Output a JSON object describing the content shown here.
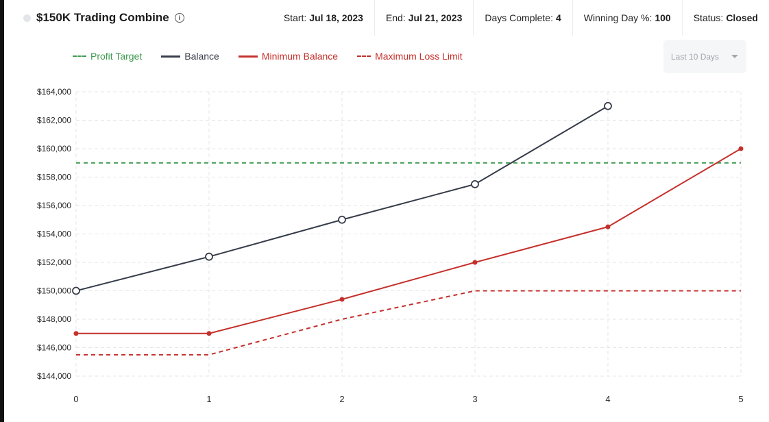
{
  "header": {
    "title": "$150K Trading Combine",
    "start_label": "Start:",
    "start_value": "Jul 18, 2023",
    "end_label": "End:",
    "end_value": "Jul 21, 2023",
    "days_label": "Days Complete:",
    "days_value": "4",
    "winning_label": "Winning Day %:",
    "winning_value": "100",
    "status_label": "Status:",
    "status_value": "Closed"
  },
  "range_selector": {
    "selected": "Last 10 Days"
  },
  "colors": {
    "profit_target": "#3f9a4f",
    "balance": "#363c4a",
    "minimum_balance": "#c4302b",
    "max_loss": "#c4302b",
    "grid": "#e2e4e8"
  },
  "chart_data": {
    "type": "line",
    "x": [
      0,
      1,
      2,
      3,
      4,
      5
    ],
    "xlim": [
      0,
      5
    ],
    "ylim": [
      144000,
      164000
    ],
    "y_ticks": [
      144000,
      146000,
      148000,
      150000,
      152000,
      154000,
      156000,
      158000,
      160000,
      162000,
      164000
    ],
    "y_tick_labels": [
      "$144,000",
      "$146,000",
      "$148,000",
      "$150,000",
      "$152,000",
      "$154,000",
      "$156,000",
      "$158,000",
      "$160,000",
      "$162,000",
      "$164,000"
    ],
    "x_tick_labels": [
      "0",
      "1",
      "2",
      "3",
      "4",
      "5"
    ],
    "grid": true,
    "legend_position": "top-left",
    "series": [
      {
        "name": "Profit Target",
        "style": "dashed",
        "x": [
          0,
          5
        ],
        "values": [
          159000,
          159000
        ]
      },
      {
        "name": "Balance",
        "style": "solid",
        "markers": "hollow-circle",
        "x": [
          0,
          1,
          2,
          3,
          4
        ],
        "values": [
          150000,
          152400,
          155000,
          157500,
          163000
        ]
      },
      {
        "name": "Minimum Balance",
        "style": "solid",
        "markers": "dot",
        "x": [
          0,
          1,
          2,
          3,
          4,
          5
        ],
        "values": [
          147000,
          147000,
          149400,
          152000,
          154500,
          160000
        ]
      },
      {
        "name": "Maximum Loss Limit",
        "style": "dashed",
        "x": [
          0,
          1,
          2,
          3,
          4,
          5
        ],
        "values": [
          145500,
          145500,
          148000,
          150000,
          150000,
          150000
        ]
      }
    ]
  }
}
